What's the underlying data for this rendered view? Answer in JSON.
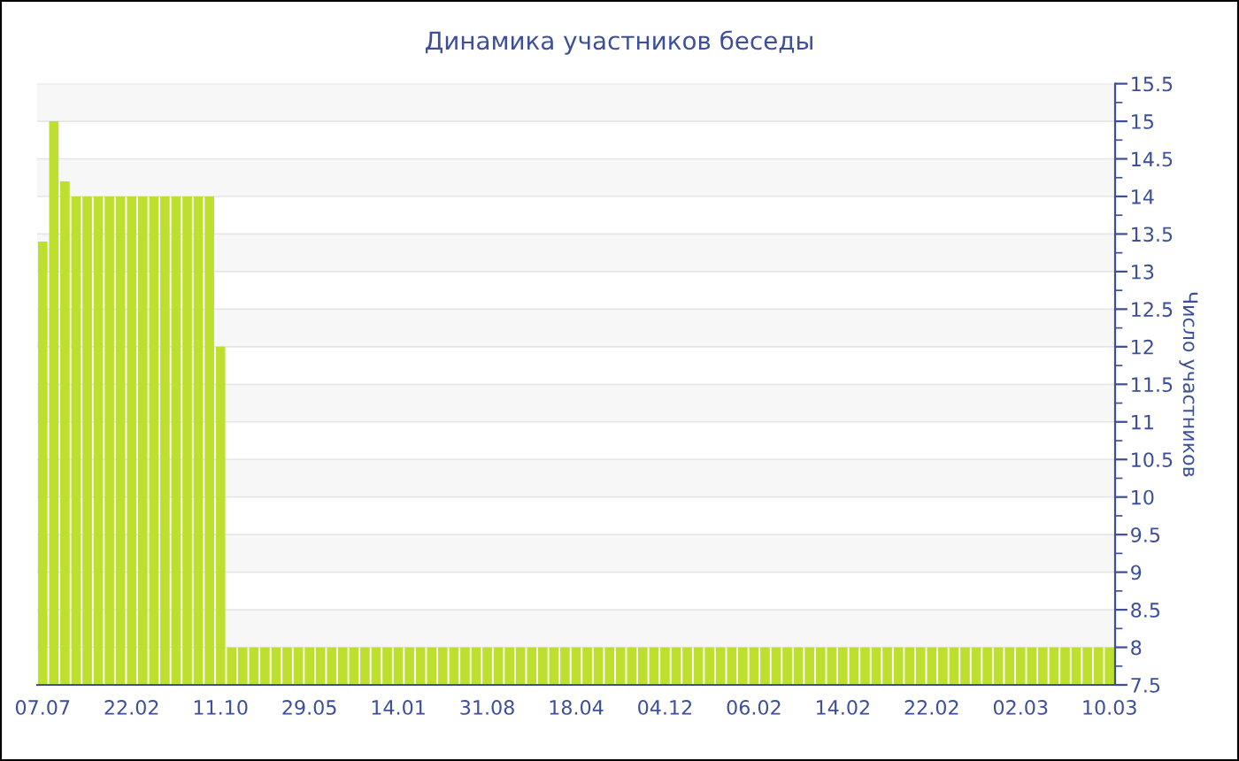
{
  "chart_data": {
    "type": "bar",
    "title": "Динамика участников беседы",
    "ylabel": "Число участников",
    "categories": [
      "07.07",
      null,
      null,
      null,
      null,
      null,
      null,
      null,
      "22.02",
      null,
      null,
      null,
      null,
      null,
      null,
      null,
      "11.10",
      null,
      null,
      null,
      null,
      null,
      null,
      null,
      "29.05",
      null,
      null,
      null,
      null,
      null,
      null,
      null,
      "14.01",
      null,
      null,
      null,
      null,
      null,
      null,
      null,
      "31.08",
      null,
      null,
      null,
      null,
      null,
      null,
      null,
      "18.04",
      null,
      null,
      null,
      null,
      null,
      null,
      null,
      "04.12",
      null,
      null,
      null,
      null,
      null,
      null,
      null,
      "06.02",
      null,
      null,
      null,
      null,
      null,
      null,
      null,
      "14.02",
      null,
      null,
      null,
      null,
      null,
      null,
      null,
      "22.02",
      null,
      null,
      null,
      null,
      null,
      null,
      null,
      "02.03",
      null,
      null,
      null,
      null,
      null,
      null,
      null,
      "10.03"
    ],
    "values": [
      13.4,
      15,
      14.2,
      14,
      14,
      14,
      14,
      14,
      14,
      14,
      14,
      14,
      14,
      14,
      14,
      14,
      12,
      8,
      8,
      8,
      8,
      8,
      8,
      8,
      8,
      8,
      8,
      8,
      8,
      8,
      8,
      8,
      8,
      8,
      8,
      8,
      8,
      8,
      8,
      8,
      8,
      8,
      8,
      8,
      8,
      8,
      8,
      8,
      8,
      8,
      8,
      8,
      8,
      8,
      8,
      8,
      8,
      8,
      8,
      8,
      8,
      8,
      8,
      8,
      8,
      8,
      8,
      8,
      8,
      8,
      8,
      8,
      8,
      8,
      8,
      8,
      8,
      8,
      8,
      8,
      8,
      8,
      8,
      8,
      8,
      8,
      8,
      8,
      8,
      8,
      8,
      8,
      8,
      8,
      8,
      8,
      8
    ],
    "color": "#bde02f",
    "ylim": [
      7.5,
      15.5
    ],
    "yticks": [
      7.5,
      8,
      8.5,
      9,
      9.5,
      10,
      10.5,
      11,
      11.5,
      12,
      12.5,
      13,
      13.5,
      14,
      14.5,
      15,
      15.5
    ],
    "grid": "y"
  }
}
